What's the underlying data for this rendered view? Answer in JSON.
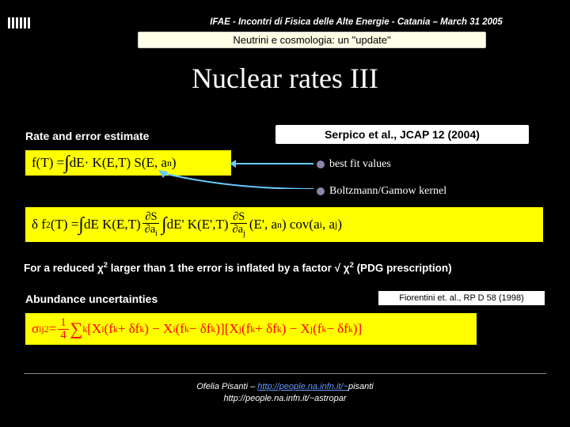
{
  "header": {
    "conference": "IFAE - Incontri di Fisica delle Alte Energie - Catania – March 31 2005",
    "subtitle": "Neutrini e cosmologia: un \"update\""
  },
  "title": "Nuclear rates III",
  "labels": {
    "rate_estimate": "Rate and error estimate",
    "abundance": "Abundance uncertainties"
  },
  "refs": {
    "serpico": "Serpico et al., JCAP 12 (2004)",
    "fiorentini": "Fiorentini et. al., RP D 58 (1998)"
  },
  "bullets": {
    "bfv": "best fit values",
    "bgk": "Boltzmann/Gamow kernel"
  },
  "equations": {
    "eq1_html": "f(T) = <span class='intg'>∫</span>dE· K(E,T) S(E, a<sub>n</sub>)",
    "eq2_html": "δ f<sup>2</sup>(T) = <span class='intg'>∫</span>dE K(E,T) <span class='frac'><span class='num'>∂S</span><span class='den'>∂a<sub>i</sub></span></span> <span class='intg'>∫</span>dE' K(E',T) <span class='frac'><span class='num'>∂S</span><span class='den'>∂a<sub>j</sub></span></span> (E', a<sub>n</sub>) cov(a<sub>i</sub>, a<sub>j</sub>)",
    "eq3_html": "σ<sub>ij</sub><sup>2</sup> = <span class='frac'><span class='num'>1</span><span class='den'>4</span></span> <span style='font-size:1.3em;vertical-align:middle'>∑</span><sub>k</sub> [X<sub>i</sub>(f<sub>k</sub> + δf<sub>k</sub>) − X<sub>i</sub>(f<sub>k</sub> − δf<sub>k</sub>)][X<sub>j</sub>(f<sub>k</sub> + δf<sub>k</sub>) − X<sub>j</sub>(f<sub>k</sub> − δf<sub>k</sub>)]"
  },
  "chi_note_html": "For a reduced χ<sup>2</sup> larger than 1 the error is inflated by a factor √ χ<sup>2</sup> (PDG prescription)",
  "footer": {
    "line1_pre": "Ofelia Pisanti – ",
    "line1_link": "http://people.na.infn.it/~",
    "line1_post": "pisanti",
    "line2": "http://people.na.infn.it/~astropar"
  },
  "colors": {
    "bg": "#000000",
    "highlight": "#ffff00",
    "eq3_text": "#ff0000",
    "arrow": "#66ccff",
    "box_bg": "#ffffff",
    "subtitle_bg": "#fffee6"
  }
}
